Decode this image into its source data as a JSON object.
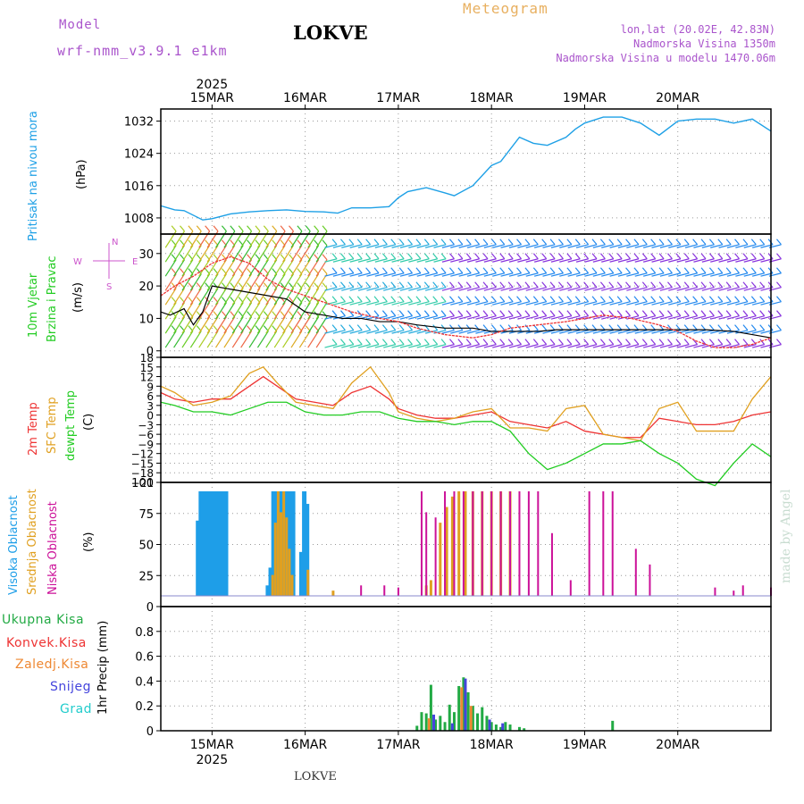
{
  "header": {
    "model_label": "Model",
    "model_name": "wrf-nmm_v3.9.1 e1km",
    "station": "LOKVE",
    "product": "Meteogram",
    "coords": "lon,lat (20.02E, 42.83N)",
    "altitude": "Nadmorska Visina 1350m",
    "model_altitude": "Nadmorska Visina u modelu 1470.06m",
    "footer_station": "LOKVE",
    "watermark": "made by Angel"
  },
  "colors": {
    "pressure": "#1ea0e6",
    "wind_label": "#22cc22",
    "temp2m": "#ee3333",
    "sfc_temp": "#e0a020",
    "dewpt": "#22cc22",
    "cloud_high": "#1e9ee8",
    "cloud_mid": "#e0a020",
    "cloud_low": "#cc1199",
    "precip_total": "#22aa44",
    "precip_conv": "#ee3333",
    "precip_frozen": "#ee8833",
    "snow": "#4444dd",
    "graupel": "#22cccc",
    "compass": "#cc55cc",
    "header_purple": "#aa55cc",
    "meteogram_orange": "#e8b060"
  },
  "chart_data": [
    {
      "type": "line",
      "panel": "pressure",
      "ylabel": [
        "Pritisak na nivou mora",
        "(hPa)"
      ],
      "yticks": [
        1008,
        1016,
        1024,
        1032
      ],
      "ylim": [
        1004,
        1035
      ],
      "x_unit": "days since 15MAR 00UTC",
      "x": [
        -0.55,
        -0.4,
        -0.3,
        -0.1,
        0,
        0.2,
        0.4,
        0.6,
        0.8,
        1.0,
        1.2,
        1.35,
        1.5,
        1.7,
        1.9,
        2.0,
        2.1,
        2.3,
        2.5,
        2.6,
        2.8,
        3.0,
        3.1,
        3.3,
        3.45,
        3.6,
        3.8,
        3.9,
        4.0,
        4.2,
        4.4,
        4.6,
        4.8,
        5.0,
        5.2,
        5.4,
        5.6,
        5.8,
        6.0
      ],
      "values": [
        1011,
        1010,
        1009.8,
        1007.5,
        1007.8,
        1009,
        1009.5,
        1009.8,
        1010,
        1009.6,
        1009.5,
        1009.2,
        1010.5,
        1010.5,
        1010.8,
        1013,
        1014.5,
        1015.5,
        1014.2,
        1013.5,
        1016,
        1021,
        1022,
        1028,
        1026.5,
        1026,
        1028,
        1030,
        1031.5,
        1033,
        1033,
        1031.5,
        1028.5,
        1032,
        1032.5,
        1032.5,
        1031.5,
        1032.5,
        1029.5
      ]
    },
    {
      "type": "line",
      "panel": "wind",
      "ylabel": [
        "10m Vjetar",
        "Brzina i Pravac",
        "(m/s)"
      ],
      "yticks": [
        0,
        10,
        20,
        30
      ],
      "ylim": [
        -2,
        36
      ],
      "compass": [
        "N",
        "E",
        "S",
        "W"
      ],
      "series": [
        {
          "color": "#000000",
          "x": [
            -0.55,
            -0.45,
            -0.3,
            -0.2,
            -0.1,
            0.0,
            0.2,
            0.4,
            0.6,
            0.8,
            0.9,
            1.0,
            1.2,
            1.4,
            1.6,
            1.8,
            2.0,
            2.2,
            2.5,
            2.8,
            3.0,
            3.2,
            3.5,
            3.7,
            3.9,
            4.1,
            4.4,
            4.7,
            5.0,
            5.3,
            5.6,
            6.0
          ],
          "values": [
            12,
            11,
            13,
            8,
            12,
            20,
            19,
            18,
            17,
            16,
            14,
            12,
            11,
            10,
            10,
            9,
            9,
            8,
            7,
            7,
            6,
            6,
            6,
            6.5,
            6.5,
            6.5,
            6.5,
            6.5,
            6.5,
            6.5,
            6,
            4
          ]
        },
        {
          "color": "#ee3333",
          "x": [
            -0.55,
            -0.4,
            -0.2,
            0.0,
            0.2,
            0.4,
            0.6,
            0.8,
            1.0,
            1.2,
            1.5,
            1.8,
            2.0,
            2.2,
            2.5,
            2.8,
            3.0,
            3.2,
            3.5,
            3.8,
            4.0,
            4.2,
            4.5,
            4.8,
            5.0,
            5.2,
            5.4,
            5.6,
            5.8,
            6.0
          ],
          "values": [
            17,
            20,
            23,
            27,
            29,
            27,
            22,
            19,
            17,
            15,
            12,
            10,
            9,
            7,
            5,
            4,
            5,
            7,
            8,
            9,
            10,
            11,
            10,
            8,
            6,
            3,
            1,
            1,
            2,
            4
          ]
        }
      ]
    },
    {
      "type": "line",
      "panel": "temperature",
      "ylabel": [
        "2m Temp",
        "SFC Temp",
        "dewpt Temp",
        "(C)"
      ],
      "yticks": [
        18,
        15,
        12,
        9,
        6,
        3,
        0,
        -3,
        -6,
        -9,
        -12,
        -15,
        -18,
        -21
      ],
      "ylim": [
        -21,
        18
      ],
      "series": [
        {
          "name": "2m Temp",
          "color": "#ee3333",
          "x": [
            -0.55,
            -0.4,
            -0.2,
            0,
            0.2,
            0.4,
            0.55,
            0.7,
            0.9,
            1.1,
            1.3,
            1.5,
            1.7,
            1.9,
            2.0,
            2.2,
            2.4,
            2.6,
            2.8,
            3.0,
            3.2,
            3.4,
            3.6,
            3.8,
            4.0,
            4.2,
            4.4,
            4.6,
            4.8,
            5.0,
            5.2,
            5.4,
            5.6,
            5.8,
            6.0
          ],
          "values": [
            7,
            5,
            4,
            5,
            5,
            9,
            12,
            9,
            5,
            4,
            3,
            7,
            9,
            5,
            2,
            0,
            -1,
            -1,
            0,
            1,
            -2,
            -3,
            -4,
            -2,
            -5,
            -6,
            -7,
            -7,
            -1,
            -2,
            -3,
            -3,
            -2,
            0,
            1
          ]
        },
        {
          "name": "SFC Temp",
          "color": "#e0a020",
          "x": [
            -0.55,
            -0.4,
            -0.2,
            0,
            0.2,
            0.4,
            0.55,
            0.7,
            0.9,
            1.1,
            1.3,
            1.5,
            1.7,
            1.9,
            2.0,
            2.2,
            2.4,
            2.6,
            2.8,
            3.0,
            3.2,
            3.4,
            3.6,
            3.8,
            4.0,
            4.2,
            4.4,
            4.6,
            4.8,
            5.0,
            5.2,
            5.4,
            5.6,
            5.8,
            6.0
          ],
          "values": [
            9,
            7,
            3,
            4,
            6,
            13,
            15,
            10,
            4,
            3,
            2,
            10,
            15,
            7,
            1,
            -1,
            -2,
            -1,
            1,
            2,
            -4,
            -4,
            -5,
            2,
            3,
            -6,
            -7,
            -8,
            2,
            4,
            -5,
            -5,
            -5,
            5,
            12
          ]
        },
        {
          "name": "dewpt Temp",
          "color": "#22cc22",
          "x": [
            -0.55,
            -0.4,
            -0.2,
            0,
            0.2,
            0.4,
            0.6,
            0.8,
            1.0,
            1.2,
            1.4,
            1.6,
            1.8,
            2.0,
            2.2,
            2.4,
            2.6,
            2.8,
            3.0,
            3.2,
            3.4,
            3.6,
            3.8,
            4.0,
            4.2,
            4.4,
            4.6,
            4.8,
            5.0,
            5.2,
            5.4,
            5.6,
            5.8,
            6.0
          ],
          "values": [
            4,
            3,
            1,
            1,
            0,
            2,
            4,
            4,
            1,
            0,
            0,
            1,
            1,
            -1,
            -2,
            -2,
            -3,
            -2,
            -2,
            -5,
            -12,
            -17,
            -15,
            -12,
            -9,
            -9,
            -8,
            -12,
            -15,
            -20,
            -22,
            -15,
            -9,
            -13
          ]
        }
      ]
    },
    {
      "type": "bar",
      "panel": "clouds",
      "ylabel": [
        "Visoka Oblacnost",
        "Srednja Oblacnost",
        "Niska Oblacnost",
        "(%)"
      ],
      "yticks": [
        0,
        25,
        50,
        75,
        100
      ],
      "ylim": [
        0,
        100
      ],
      "series": [
        {
          "name": "Visoka Oblacnost",
          "color": "#1e9ee8",
          "x": [
            -0.15,
            -0.12,
            -0.09,
            -0.06,
            -0.03,
            0.0,
            0.03,
            0.06,
            0.09,
            0.12,
            0.15,
            0.6,
            0.63,
            0.66,
            0.69,
            0.72,
            0.75,
            0.78,
            0.81,
            0.84,
            0.87,
            0.96,
            0.99,
            1.02
          ],
          "values": [
            72,
            100,
            100,
            100,
            100,
            100,
            100,
            100,
            100,
            100,
            100,
            10,
            27,
            100,
            100,
            100,
            100,
            100,
            100,
            100,
            100,
            42,
            100,
            88
          ]
        },
        {
          "name": "Srednja Oblacnost",
          "color": "#e0a020",
          "x": [
            0.65,
            0.68,
            0.71,
            0.74,
            0.77,
            0.8,
            0.83,
            0.86,
            1.03,
            1.3,
            2.3,
            2.35,
            2.45,
            2.52,
            2.58,
            2.65,
            2.72,
            2.8,
            2.9,
            3.0,
            3.1,
            3.2
          ],
          "values": [
            20,
            70,
            100,
            80,
            100,
            75,
            45,
            20,
            25,
            5,
            10,
            15,
            70,
            85,
            95,
            100,
            100,
            100,
            100,
            100,
            100,
            100
          ]
        },
        {
          "name": "Niska Oblacnost",
          "color": "#cc1199",
          "x": [
            1.6,
            1.85,
            2.0,
            2.25,
            2.3,
            2.4,
            2.5,
            2.6,
            2.7,
            2.8,
            2.9,
            3.0,
            3.1,
            3.2,
            3.3,
            3.4,
            3.5,
            3.65,
            3.85,
            4.05,
            4.2,
            4.3,
            4.55,
            4.7,
            5.4,
            5.6,
            5.7,
            6.0
          ],
          "values": [
            10,
            10,
            8,
            100,
            80,
            75,
            100,
            100,
            100,
            100,
            100,
            100,
            100,
            100,
            100,
            100,
            100,
            60,
            15,
            100,
            100,
            100,
            45,
            30,
            8,
            5,
            10,
            8
          ]
        }
      ]
    },
    {
      "type": "bar",
      "panel": "precip",
      "ylabel": [
        "Ukupna Kisa",
        "Konvek.Kisa",
        "Zaledj.Kisa",
        "Snijeg",
        "Grad",
        "1hr Precip (mm)"
      ],
      "yticks": [
        0,
        0.2,
        0.4,
        0.6,
        0.8
      ],
      "ylim": [
        0,
        1.0
      ],
      "series": [
        {
          "name": "Ukupna Kisa",
          "color": "#22aa44",
          "x": [
            2.2,
            2.25,
            2.3,
            2.35,
            2.4,
            2.45,
            2.5,
            2.55,
            2.6,
            2.65,
            2.7,
            2.75,
            2.8,
            2.85,
            2.9,
            2.95,
            3.0,
            3.05,
            3.1,
            3.15,
            3.2,
            3.3,
            3.35,
            4.3
          ],
          "values": [
            0.04,
            0.15,
            0.14,
            0.37,
            0.09,
            0.12,
            0.07,
            0.21,
            0.15,
            0.36,
            0.43,
            0.31,
            0.2,
            0.14,
            0.19,
            0.12,
            0.07,
            0.05,
            0.03,
            0.07,
            0.05,
            0.03,
            0.02,
            0.08
          ]
        },
        {
          "name": "Zaledj.Kisa",
          "color": "#ee8833",
          "x": [
            2.33,
            2.68,
            2.78
          ],
          "values": [
            0.1,
            0.35,
            0.2
          ]
        },
        {
          "name": "Snijeg",
          "color": "#4444dd",
          "x": [
            2.38,
            2.58,
            2.72,
            2.98,
            3.12
          ],
          "values": [
            0.13,
            0.06,
            0.42,
            0.09,
            0.06
          ]
        }
      ]
    }
  ],
  "x_axis": {
    "year": "2025",
    "dates": [
      "15MAR",
      "16MAR",
      "17MAR",
      "18MAR",
      "19MAR",
      "20MAR"
    ],
    "range": [
      -0.55,
      6.0
    ]
  }
}
